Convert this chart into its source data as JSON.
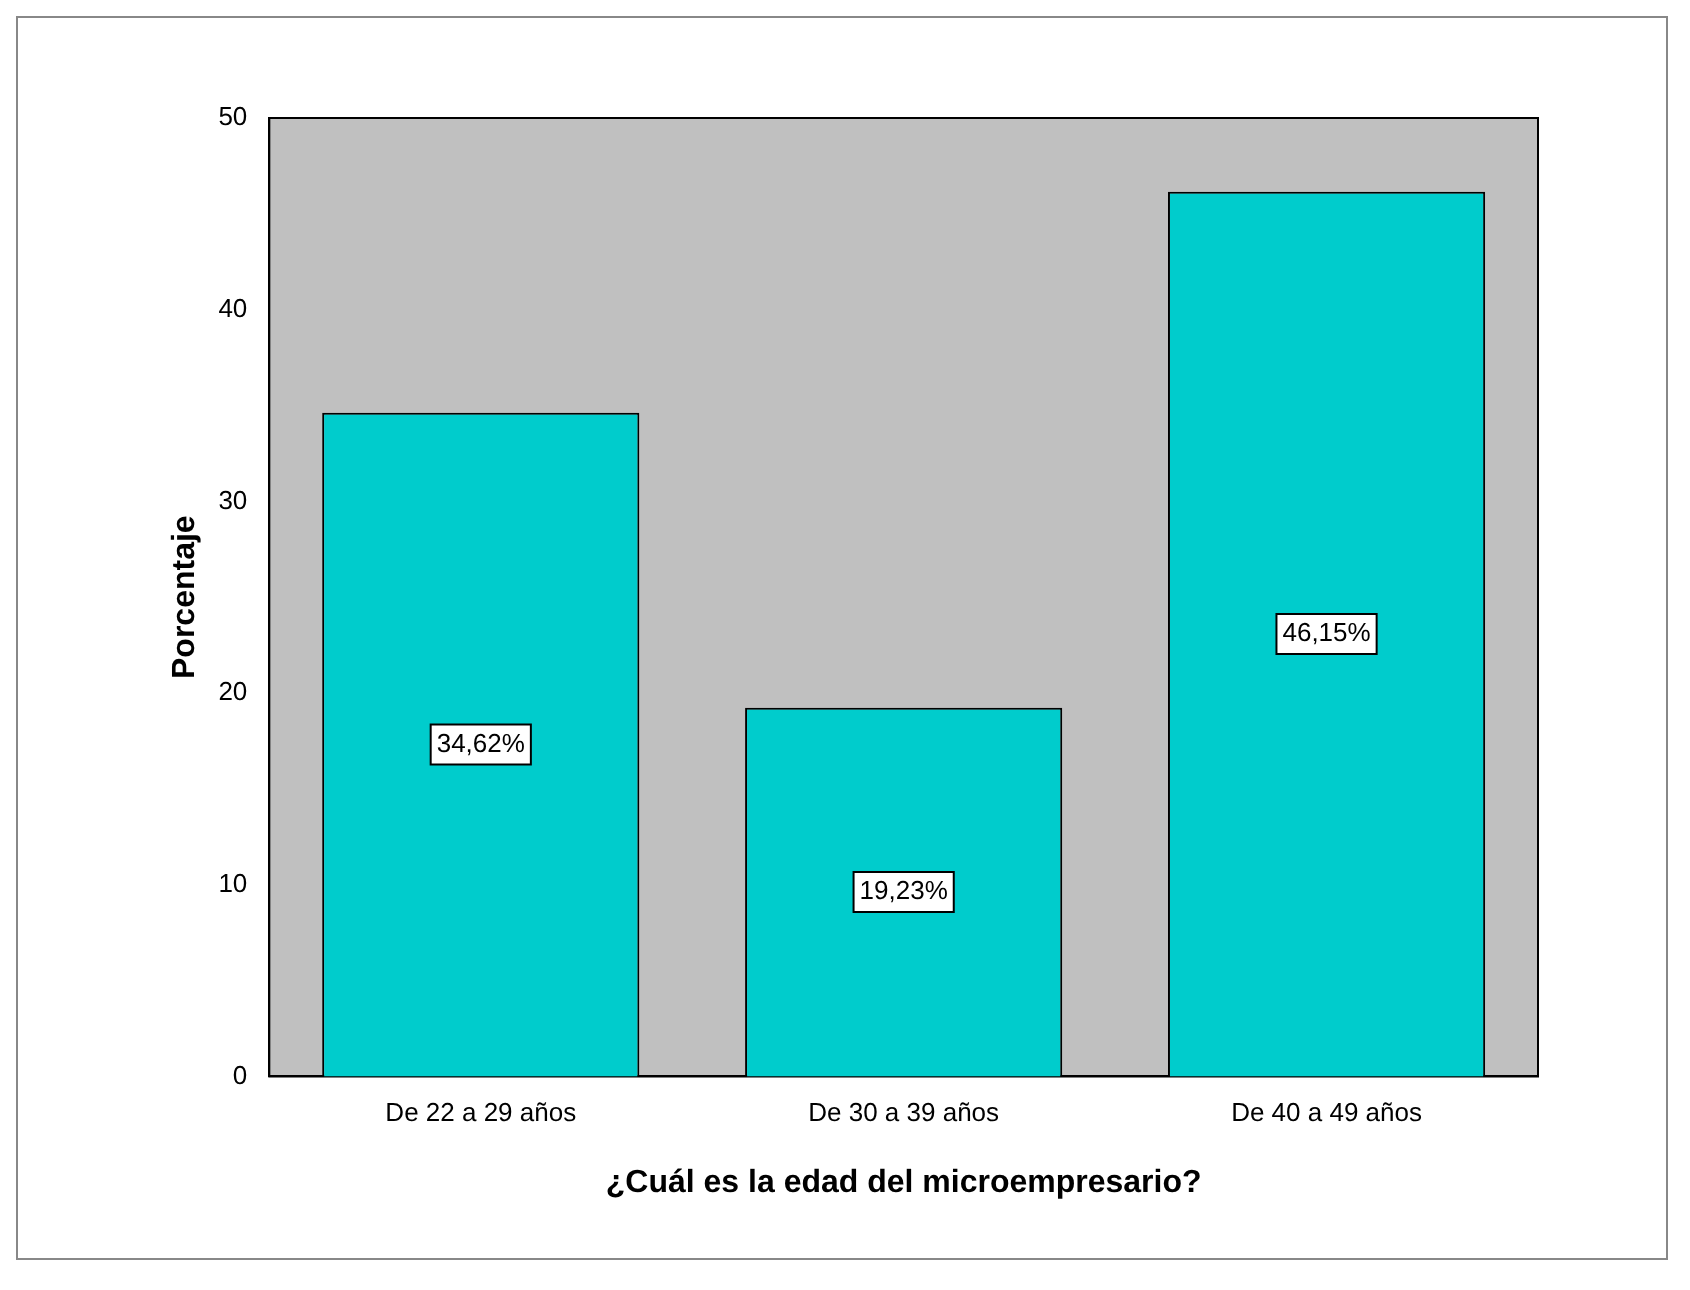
{
  "chart_data": {
    "type": "bar",
    "xlabel": "¿Cuál es la edad del microempresario?",
    "ylabel": "Porcentaje",
    "categories": [
      "De 22 a 29 años",
      "De 30 a 39 años",
      "De 40 a 49 años"
    ],
    "values": [
      34.62,
      19.23,
      46.15
    ],
    "value_labels": [
      "34,62%",
      "19,23%",
      "46,15%"
    ],
    "color": "#00cccc",
    "ylim": [
      0,
      50
    ],
    "yticks": [
      0,
      10,
      20,
      30,
      40,
      50
    ],
    "grid": false,
    "legend": false
  }
}
